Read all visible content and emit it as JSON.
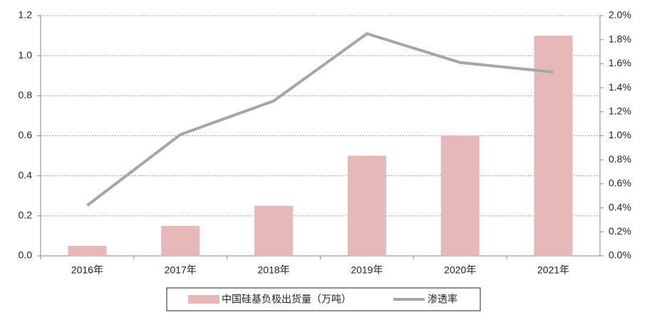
{
  "chart_data": {
    "type": "bar",
    "categories": [
      "2016年",
      "2017年",
      "2018年",
      "2019年",
      "2020年",
      "2021年"
    ],
    "series": [
      {
        "name": "中国硅基负极出货量（万吨）",
        "type": "bar",
        "color": "#e6b9b8",
        "values": [
          0.05,
          0.15,
          0.25,
          0.5,
          0.6,
          1.1
        ]
      },
      {
        "name": "渗透率",
        "type": "line",
        "axis": "y2",
        "color": "#a6a6a6",
        "values": [
          0.42,
          1.01,
          1.29,
          1.85,
          1.61,
          1.53
        ]
      }
    ],
    "ylim": [
      0,
      1.2
    ],
    "yticks": [
      {
        "value": 0,
        "label": "0.0"
      },
      0.2,
      0.4,
      0.6,
      0.8,
      {
        "value": 1,
        "label": "1.0"
      },
      1.2
    ],
    "y2lim": [
      0,
      2
    ],
    "y2ticks": [
      {
        "value": 0,
        "label": "0.0%"
      },
      {
        "value": 0.2,
        "label": "0.2%"
      },
      {
        "value": 0.4,
        "label": "0.4%"
      },
      {
        "value": 0.6,
        "label": "0.6%"
      },
      {
        "value": 0.8,
        "label": "0.8%"
      },
      {
        "value": 1,
        "label": "1.0%"
      },
      {
        "value": 1.2,
        "label": "1.2%"
      },
      {
        "value": 1.4,
        "label": "1.4%"
      },
      {
        "value": 1.6,
        "label": "1.6%"
      },
      {
        "value": 1.8,
        "label": "1.8%"
      },
      {
        "value": 2,
        "label": "2.0%"
      }
    ],
    "grid": true,
    "legend": "bottom"
  }
}
